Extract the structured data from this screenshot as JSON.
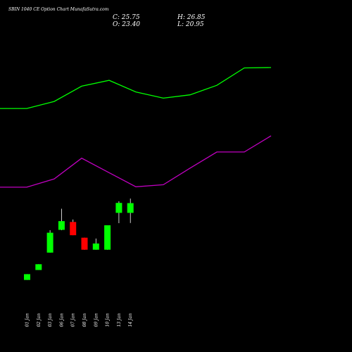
{
  "chart_data": {
    "type": "candlestick",
    "title": "SBIN 1040 CE Option Chart MunafaSutra.com",
    "ohlc_readout": {
      "close": "C: 25.75",
      "high": "H: 26.85",
      "open": "O: 23.40",
      "low": "L: 20.95"
    },
    "categories": [
      "01 Jan",
      "02 Jan",
      "03 Jan",
      "06 Jan",
      "07 Jan",
      "08 Jan",
      "09 Jan",
      "10 Jan",
      "13 Jan",
      "14 Jan"
    ],
    "candles": [
      {
        "date": "01 Jan",
        "open": 7.2,
        "high": 8.6,
        "low": 7.2,
        "close": 8.6
      },
      {
        "date": "02 Jan",
        "open": 9.6,
        "high": 11.0,
        "low": 9.6,
        "close": 11.0
      },
      {
        "date": "03 Jan",
        "open": 13.8,
        "high": 19.2,
        "low": 13.8,
        "close": 18.6
      },
      {
        "date": "06 Jan",
        "open": 19.3,
        "high": 24.4,
        "low": 19.2,
        "close": 21.4
      },
      {
        "date": "07 Jan",
        "open": 21.2,
        "high": 21.8,
        "low": 18.0,
        "close": 18.0
      },
      {
        "date": "08 Jan",
        "open": 17.4,
        "high": 17.4,
        "low": 14.5,
        "close": 14.5
      },
      {
        "date": "09 Jan",
        "open": 14.5,
        "high": 17.2,
        "low": 14.5,
        "close": 16.0
      },
      {
        "date": "10 Jan",
        "open": 14.5,
        "high": 20.4,
        "low": 14.5,
        "close": 20.4
      },
      {
        "date": "13 Jan",
        "open": 23.4,
        "high": 26.2,
        "low": 20.9,
        "close": 25.8
      },
      {
        "date": "14 Jan",
        "open": 23.4,
        "high": 26.85,
        "low": 20.95,
        "close": 25.75
      }
    ],
    "upper_band": [
      48.6,
      48.6,
      50.3,
      54.0,
      55.4,
      52.6,
      51.1,
      51.9,
      54.2,
      58.4,
      58.5
    ],
    "lower_band": [
      29.6,
      29.6,
      31.6,
      36.6,
      33.1,
      29.7,
      30.2,
      34.2,
      38.1,
      38.1,
      42.0
    ],
    "ylim": [
      0,
      68
    ],
    "colors": {
      "background": "#000000",
      "up": "#00ff00",
      "down": "#ff0000",
      "wick": "#ffffff",
      "upper_band": "#00ff00",
      "lower_band": "#c000c0",
      "text": "#ffffff"
    }
  }
}
